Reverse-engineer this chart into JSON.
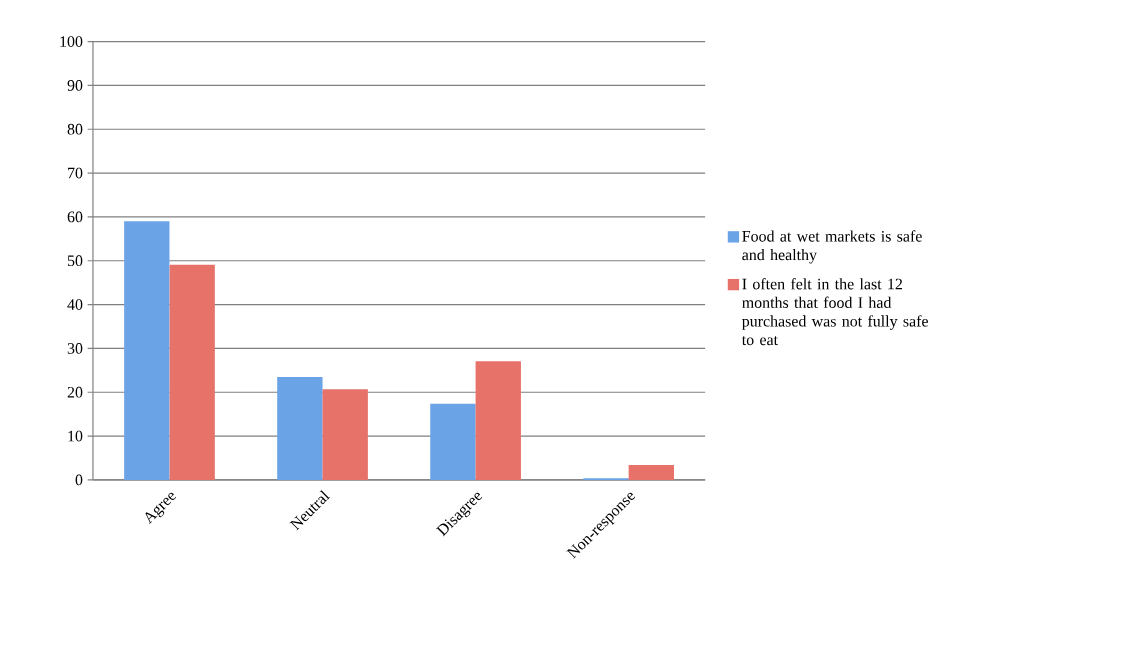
{
  "chart_data": {
    "type": "bar",
    "categories": [
      "Agree",
      "Neutral",
      "Disagree",
      "Non-response"
    ],
    "series": [
      {
        "name": "Food at wet markets is safe and healthy",
        "color": "#6aa3e6",
        "values": [
          59.0,
          23.5,
          17.4,
          0.4
        ]
      },
      {
        "name": "I often felt in the last 12 months that food I had purchased was not fully safe to eat",
        "color": "#e6726a",
        "values": [
          49.1,
          20.7,
          27.1,
          3.4
        ]
      }
    ],
    "ylim": [
      0,
      100
    ],
    "yticks": [
      0,
      10,
      20,
      30,
      40,
      50,
      60,
      70,
      80,
      90,
      100
    ],
    "grid": "y",
    "legend": "right"
  }
}
